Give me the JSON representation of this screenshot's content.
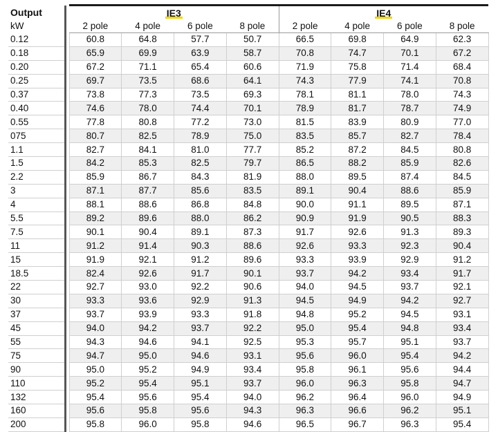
{
  "header": {
    "output_label": "Output",
    "unit_label": "kW",
    "groups": [
      "IE3",
      "IE4"
    ],
    "poles": [
      "2 pole",
      "4 pole",
      "6 pole",
      "8 pole"
    ]
  },
  "rows": [
    {
      "output": "0.12",
      "ie3": [
        "60.8",
        "64.8",
        "57.7",
        "50.7"
      ],
      "ie4": [
        "66.5",
        "69.8",
        "64.9",
        "62.3"
      ]
    },
    {
      "output": "0.18",
      "ie3": [
        "65.9",
        "69.9",
        "63.9",
        "58.7"
      ],
      "ie4": [
        "70.8",
        "74.7",
        "70.1",
        "67.2"
      ]
    },
    {
      "output": "0.20",
      "ie3": [
        "67.2",
        "71.1",
        "65.4",
        "60.6"
      ],
      "ie4": [
        "71.9",
        "75.8",
        "71.4",
        "68.4"
      ]
    },
    {
      "output": "0.25",
      "ie3": [
        "69.7",
        "73.5",
        "68.6",
        "64.1"
      ],
      "ie4": [
        "74.3",
        "77.9",
        "74.1",
        "70.8"
      ]
    },
    {
      "output": "0.37",
      "ie3": [
        "73.8",
        "77.3",
        "73.5",
        "69.3"
      ],
      "ie4": [
        "78.1",
        "81.1",
        "78.0",
        "74.3"
      ]
    },
    {
      "output": "0.40",
      "ie3": [
        "74.6",
        "78.0",
        "74.4",
        "70.1"
      ],
      "ie4": [
        "78.9",
        "81.7",
        "78.7",
        "74.9"
      ]
    },
    {
      "output": "0.55",
      "ie3": [
        "77.8",
        "80.8",
        "77.2",
        "73.0"
      ],
      "ie4": [
        "81.5",
        "83.9",
        "80.9",
        "77.0"
      ]
    },
    {
      "output": "075",
      "ie3": [
        "80.7",
        "82.5",
        "78.9",
        "75.0"
      ],
      "ie4": [
        "83.5",
        "85.7",
        "82.7",
        "78.4"
      ]
    },
    {
      "output": "1.1",
      "ie3": [
        "82.7",
        "84.1",
        "81.0",
        "77.7"
      ],
      "ie4": [
        "85.2",
        "87.2",
        "84.5",
        "80.8"
      ]
    },
    {
      "output": "1.5",
      "ie3": [
        "84.2",
        "85.3",
        "82.5",
        "79.7"
      ],
      "ie4": [
        "86.5",
        "88.2",
        "85.9",
        "82.6"
      ]
    },
    {
      "output": "2.2",
      "ie3": [
        "85.9",
        "86.7",
        "84.3",
        "81.9"
      ],
      "ie4": [
        "88.0",
        "89.5",
        "87.4",
        "84.5"
      ]
    },
    {
      "output": "3",
      "ie3": [
        "87.1",
        "87.7",
        "85.6",
        "83.5"
      ],
      "ie4": [
        "89.1",
        "90.4",
        "88.6",
        "85.9"
      ]
    },
    {
      "output": "4",
      "ie3": [
        "88.1",
        "88.6",
        "86.8",
        "84.8"
      ],
      "ie4": [
        "90.0",
        "91.1",
        "89.5",
        "87.1"
      ]
    },
    {
      "output": "5.5",
      "ie3": [
        "89.2",
        "89.6",
        "88.0",
        "86.2"
      ],
      "ie4": [
        "90.9",
        "91.9",
        "90.5",
        "88.3"
      ]
    },
    {
      "output": "7.5",
      "ie3": [
        "90.1",
        "90.4",
        "89.1",
        "87.3"
      ],
      "ie4": [
        "91.7",
        "92.6",
        "91.3",
        "89.3"
      ]
    },
    {
      "output": "11",
      "ie3": [
        "91.2",
        "91.4",
        "90.3",
        "88.6"
      ],
      "ie4": [
        "92.6",
        "93.3",
        "92.3",
        "90.4"
      ]
    },
    {
      "output": "15",
      "ie3": [
        "91.9",
        "92.1",
        "91.2",
        "89.6"
      ],
      "ie4": [
        "93.3",
        "93.9",
        "92.9",
        "91.2"
      ]
    },
    {
      "output": "18.5",
      "ie3": [
        "82.4",
        "92.6",
        "91.7",
        "90.1"
      ],
      "ie4": [
        "93.7",
        "94.2",
        "93.4",
        "91.7"
      ]
    },
    {
      "output": "22",
      "ie3": [
        "92.7",
        "93.0",
        "92.2",
        "90.6"
      ],
      "ie4": [
        "94.0",
        "94.5",
        "93.7",
        "92.1"
      ]
    },
    {
      "output": "30",
      "ie3": [
        "93.3",
        "93.6",
        "92.9",
        "91.3"
      ],
      "ie4": [
        "94.5",
        "94.9",
        "94.2",
        "92.7"
      ]
    },
    {
      "output": "37",
      "ie3": [
        "93.7",
        "93.9",
        "93.3",
        "91.8"
      ],
      "ie4": [
        "94.8",
        "95.2",
        "94.5",
        "93.1"
      ]
    },
    {
      "output": "45",
      "ie3": [
        "94.0",
        "94.2",
        "93.7",
        "92.2"
      ],
      "ie4": [
        "95.0",
        "95.4",
        "94.8",
        "93.4"
      ]
    },
    {
      "output": "55",
      "ie3": [
        "94.3",
        "94.6",
        "94.1",
        "92.5"
      ],
      "ie4": [
        "95.3",
        "95.7",
        "95.1",
        "93.7"
      ]
    },
    {
      "output": "75",
      "ie3": [
        "94.7",
        "95.0",
        "94.6",
        "93.1"
      ],
      "ie4": [
        "95.6",
        "96.0",
        "95.4",
        "94.2"
      ]
    },
    {
      "output": "90",
      "ie3": [
        "95.0",
        "95.2",
        "94.9",
        "93.4"
      ],
      "ie4": [
        "95.8",
        "96.1",
        "95.6",
        "94.4"
      ]
    },
    {
      "output": "110",
      "ie3": [
        "95.2",
        "95.4",
        "95.1",
        "93.7"
      ],
      "ie4": [
        "96.0",
        "96.3",
        "95.8",
        "94.7"
      ]
    },
    {
      "output": "132",
      "ie3": [
        "95.4",
        "95.6",
        "95.4",
        "94.0"
      ],
      "ie4": [
        "96.2",
        "96.4",
        "96.0",
        "94.9"
      ]
    },
    {
      "output": "160",
      "ie3": [
        "95.6",
        "95.8",
        "95.6",
        "94.3"
      ],
      "ie4": [
        "96.3",
        "96.6",
        "96.2",
        "95.1"
      ]
    },
    {
      "output": "200",
      "ie3": [
        "95.8",
        "96.0",
        "95.8",
        "94.6"
      ],
      "ie4": [
        "96.5",
        "96.7",
        "96.3",
        "95.4"
      ]
    }
  ],
  "colors": {
    "group_underline": "#f1d400",
    "row_shade": "#efefef",
    "grid": "#cfcfcf"
  }
}
